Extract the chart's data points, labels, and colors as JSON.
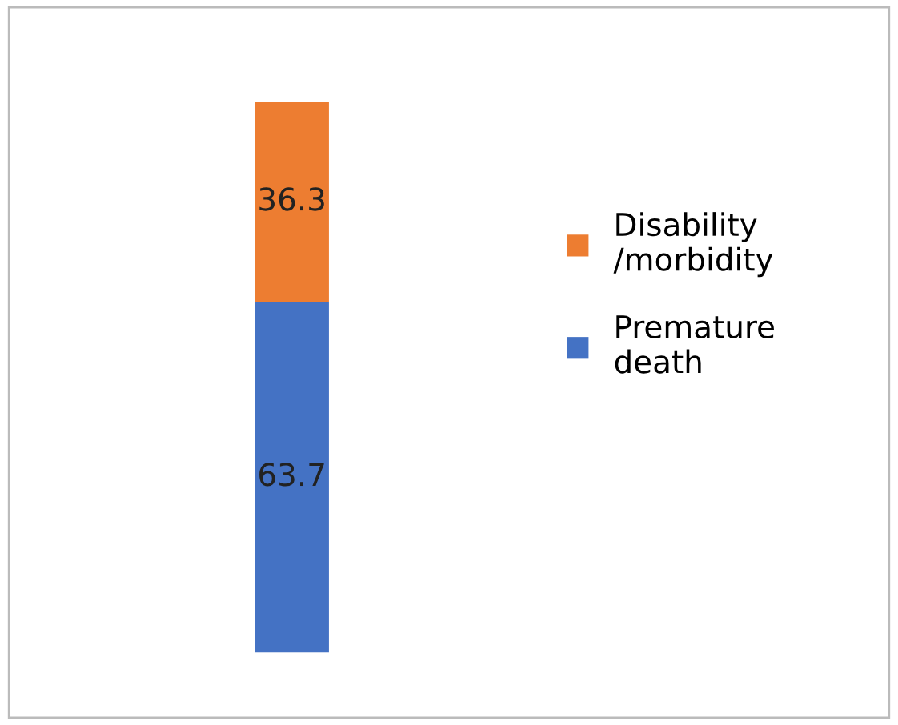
{
  "chart_data": {
    "type": "bar",
    "stacked": true,
    "categories": [
      null
    ],
    "data_labels": true,
    "legend": "right",
    "grid": false,
    "series": [
      {
        "name": "Premature\ndeath",
        "color": "#4472c4",
        "values": [
          63.7
        ]
      },
      {
        "name": "Disability\n/morbidity",
        "color": "#ed7d31",
        "values": [
          36.3
        ]
      }
    ]
  }
}
